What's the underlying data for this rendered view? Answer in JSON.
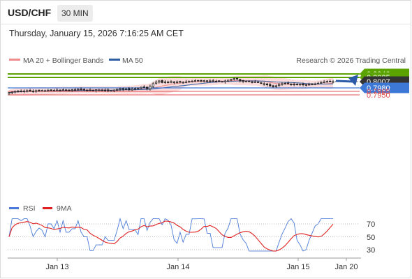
{
  "header": {
    "symbol": "USD/CHF",
    "timeframe": "30 MIN",
    "timestamp": "Thursday, January 15, 2026 7:16:25 AM CET"
  },
  "legend": {
    "bb": "MA 20 + Bollinger Bands",
    "ma50": "MA 50",
    "credit": "Research © 2026 Trading Central"
  },
  "rsi_legend": {
    "rsi": "RSI",
    "ma": "9MA"
  },
  "colors": {
    "green": "#5aa300",
    "blue_line": "#3e78d6",
    "red": "#e05050",
    "candle": "#222222",
    "bb_fill": "#fbd2d2",
    "ma20": "#f08c8c",
    "ma50": "#2e5fa3",
    "arrow": "#2b5aa8",
    "current": "#333333",
    "rsi": "#4a7bd8",
    "rsi_ma": "#e02020"
  },
  "chart_data": [
    {
      "type": "candlestick",
      "title": "USD/CHF 30 MIN",
      "x_tick_labels": [
        "Jan 13",
        "Jan 14",
        "Jan 15",
        "Jan 20"
      ],
      "ylim": [
        0.7945,
        0.8045
      ],
      "levels": [
        {
          "value": 0.804,
          "label": "0.8040",
          "kind": "resistance"
        },
        {
          "value": 0.8025,
          "label": "0.8025",
          "kind": "resistance"
        },
        {
          "value": 0.8007,
          "label": "0.8007",
          "kind": "current"
        },
        {
          "value": 0.798,
          "label": "0.7980",
          "kind": "pivot"
        },
        {
          "value": 0.7965,
          "label": "0.7965",
          "kind": "support"
        },
        {
          "value": 0.795,
          "label": "0.7950",
          "kind": "support"
        }
      ],
      "series": [
        {
          "name": "MA 20 + Bollinger Bands",
          "close": [
            0.796,
            0.7962,
            0.7965,
            0.7966,
            0.7964,
            0.7967,
            0.7968,
            0.7966,
            0.7965,
            0.7968,
            0.7967,
            0.7969,
            0.7968,
            0.797,
            0.7969,
            0.797,
            0.7971,
            0.797,
            0.7972,
            0.7971,
            0.797,
            0.7972,
            0.7973,
            0.7974,
            0.7973,
            0.7971,
            0.797,
            0.7969,
            0.797,
            0.7972,
            0.7971,
            0.7969,
            0.797,
            0.7968,
            0.7969,
            0.7971,
            0.7973,
            0.7978,
            0.7974,
            0.7976,
            0.7973,
            0.7975,
            0.7977,
            0.7979,
            0.7983,
            0.7985,
            0.7977,
            0.7988,
            0.7998,
            0.8005,
            0.801,
            0.8003,
            0.8006,
            0.8005,
            0.8007,
            0.8003,
            0.8006,
            0.8005,
            0.8004,
            0.8006,
            0.8008,
            0.8009,
            0.8011,
            0.8012,
            0.801,
            0.8011,
            0.8009,
            0.801,
            0.8008,
            0.8009,
            0.8007,
            0.8008,
            0.801,
            0.8013,
            0.8016,
            0.802,
            0.8018,
            0.801,
            0.8008,
            0.8009,
            0.8007,
            0.8005,
            0.8006,
            0.8004,
            0.7999,
            0.7996,
            0.7993,
            0.7989,
            0.7985,
            0.7989,
            0.7995,
            0.7998,
            0.7999,
            0.7998,
            0.7996,
            0.7995,
            0.7994,
            0.7996,
            0.7993,
            0.7994,
            0.7995,
            0.7996,
            0.7997,
            0.8,
            0.8003,
            0.8006,
            0.8008,
            0.8007,
            0.8007
          ]
        },
        {
          "name": "MA 50"
        }
      ]
    },
    {
      "type": "line",
      "title": "RSI",
      "y_tick_labels": [
        "70",
        "50",
        "30"
      ],
      "ylim": [
        20,
        80
      ],
      "series": [
        {
          "name": "RSI"
        },
        {
          "name": "9MA"
        }
      ]
    }
  ]
}
